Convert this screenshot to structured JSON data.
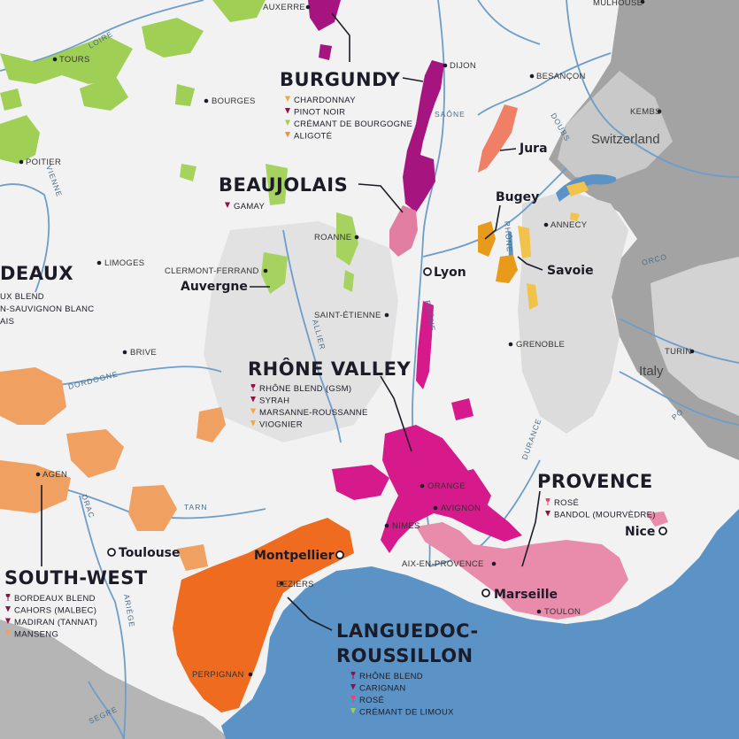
{
  "colors": {
    "land": "#f2f2f2",
    "sea": "#5b93c6",
    "mountain": "#9a9a9a",
    "river": "#6d9dc8",
    "burgundy": "#a6157f",
    "beaujolais": "#e07da0",
    "rhone": "#d6198b",
    "provence": "#e98cab",
    "languedoc": "#ee6b1f",
    "southwest": "#f0a060",
    "loire": "#9fcf55",
    "jura": "#ef8066",
    "savoie": "#f2c34a",
    "bugey": "#e89a1a",
    "auvergne": "#a6d35f"
  },
  "regions": {
    "burgundy": {
      "title": "BURGUNDY",
      "grapes": [
        {
          "label": "CHARDONNAY",
          "icon": "grape-icon",
          "color": "#f4a640"
        },
        {
          "label": "PINOT NOIR",
          "icon": "grape-icon",
          "color": "#8e1448"
        },
        {
          "label": "CRÉMANT DE BOURGOGNE",
          "icon": "grape-icon",
          "color": "#9fcf55"
        },
        {
          "label": "ALIGOTÉ",
          "icon": "grape-icon",
          "color": "#f0922f"
        }
      ]
    },
    "beaujolais": {
      "title": "BEAUJOLAIS",
      "grapes": [
        {
          "label": "GAMAY",
          "icon": "grape-icon",
          "color": "#8e1448"
        }
      ]
    },
    "rhone": {
      "title": "RHÔNE VALLEY",
      "grapes": [
        {
          "label": "RHÔNE BLEND (GSM)",
          "icon": "glass-icon",
          "color": "#8e1448"
        },
        {
          "label": "SYRAH",
          "icon": "grape-icon",
          "color": "#8e1448"
        },
        {
          "label": "MARSANNE-ROUSSANNE",
          "icon": "grape-icon",
          "color": "#f4a640"
        },
        {
          "label": "VIOGNIER",
          "icon": "grape-icon",
          "color": "#f4a640"
        }
      ]
    },
    "provence": {
      "title": "PROVENCE",
      "grapes": [
        {
          "label": "ROSÉ",
          "icon": "glass-icon",
          "color": "#e8456e"
        },
        {
          "label": "BANDOL (MOURVÈDRE)",
          "icon": "grape-icon",
          "color": "#8e1448"
        }
      ]
    },
    "southwest": {
      "title": "SOUTH-WEST",
      "grapes": [
        {
          "label": "BORDEAUX BLEND",
          "icon": "glass-icon",
          "color": "#8e1448"
        },
        {
          "label": "CAHORS (MALBEC)",
          "icon": "grape-icon",
          "color": "#8e1448"
        },
        {
          "label": "MADIRAN (TANNAT)",
          "icon": "grape-icon",
          "color": "#8e1448"
        },
        {
          "label": "MANSENG",
          "icon": "grape-icon",
          "color": "#f0a060"
        }
      ]
    },
    "languedoc": {
      "title_line1": "LANGUEDOC-",
      "title_line2": "ROUSSILLON",
      "grapes": [
        {
          "label": "RHÔNE BLEND",
          "icon": "glass-icon",
          "color": "#8e1448"
        },
        {
          "label": "CARIGNAN",
          "icon": "grape-icon",
          "color": "#8e1448"
        },
        {
          "label": "ROSÉ",
          "icon": "glass-icon",
          "color": "#e8456e"
        },
        {
          "label": "CRÉMANT DE LIMOUX",
          "icon": "grape-icon",
          "color": "#9fcf55"
        }
      ]
    },
    "bordeaux": {
      "title": "DEAUX",
      "grapes": [
        "UX BLEND",
        "N-SAUVIGNON BLANC",
        "AIS"
      ]
    },
    "jura": {
      "title": "Jura"
    },
    "bugey": {
      "title": "Bugey"
    },
    "savoie": {
      "title": "Savoie"
    },
    "auvergne": {
      "title": "Auvergne"
    }
  },
  "cities": {
    "auxerre": "AUXERRE",
    "mulhouse": "MULHOUSE",
    "tours": "TOURS",
    "dijon": "DIJON",
    "besancon": "BESANÇON",
    "bourges": "BOURGES",
    "kembs": "KEMBS",
    "poitier": "POITIER",
    "roanne": "ROANNE",
    "annecy": "ANNECY",
    "limoges": "LIMOGES",
    "clermont": "CLERMONT-FERRAND",
    "saint_etienne": "SAINT-ÉTIENNE",
    "grenoble": "GRENOBLE",
    "brive": "BRIVE",
    "turin": "TURIN",
    "agen": "AGEN",
    "orange": "ORANGE",
    "avignon": "AVIGNON",
    "nimes": "NIMES",
    "beziers": "BEZIERS",
    "aix": "AIX-EN-PROVENCE",
    "toulon": "TOULON",
    "perpignan": "PERPIGNAN",
    "lyon": "Lyon",
    "toulouse": "Toulouse",
    "montpellier": "Montpellier",
    "marseille": "Marseille",
    "nice": "Nice"
  },
  "rivers": {
    "loire": "LOIRE",
    "saone": "SAÔNE",
    "doubs": "DOUBS",
    "vienne": "VIENNE",
    "allier": "ALLIER",
    "rhone_river": "RHÔNE",
    "rhone_river2": "RHÔNE",
    "dordogne": "DORDOGNE",
    "durance": "DURANCE",
    "tarn": "TARN",
    "drac": "DRAC",
    "ariege": "ARIÈGE",
    "segre": "SEGRE",
    "orco": "ORCO",
    "po": "PO"
  },
  "countries": {
    "switzerland": "Switzerland",
    "italy": "Italy"
  }
}
